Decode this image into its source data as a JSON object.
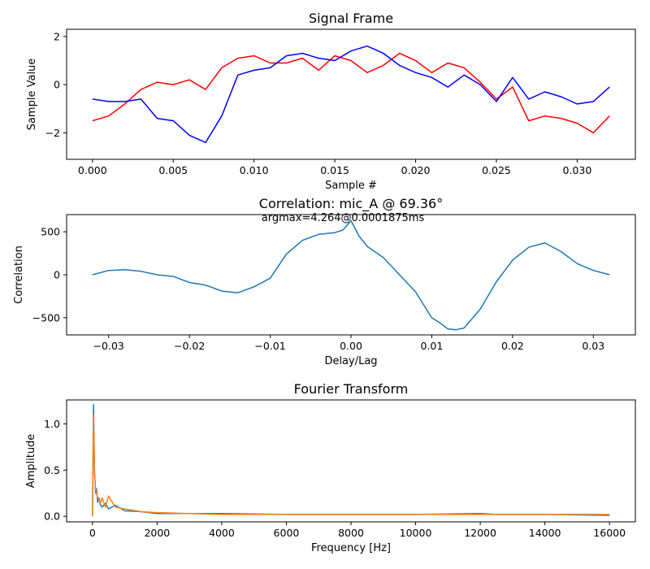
{
  "chart_data": [
    {
      "type": "line",
      "title": "Signal Frame",
      "xlabel": "Sample #",
      "ylabel": "Sample Value",
      "xlim": [
        -0.0016,
        0.0336
      ],
      "ylim": [
        -3.1,
        2.3
      ],
      "xticks": [
        "0.000",
        "0.005",
        "0.010",
        "0.015",
        "0.020",
        "0.025",
        "0.030"
      ],
      "xtick_values": [
        0,
        0.005,
        0.01,
        0.015,
        0.02,
        0.025,
        0.03
      ],
      "yticks": [
        "−2",
        "0",
        "2"
      ],
      "ytick_values": [
        -2,
        0,
        2
      ],
      "grid": false,
      "series": [
        {
          "color": "#ff0000",
          "x": [
            0,
            0.001,
            0.002,
            0.003,
            0.004,
            0.005,
            0.006,
            0.007,
            0.008,
            0.009,
            0.01,
            0.011,
            0.012,
            0.013,
            0.014,
            0.015,
            0.016,
            0.017,
            0.018,
            0.019,
            0.02,
            0.021,
            0.022,
            0.023,
            0.024,
            0.025,
            0.026,
            0.027,
            0.028,
            0.029,
            0.03,
            0.031,
            0.032
          ],
          "y": [
            -1.5,
            -1.3,
            -0.8,
            -0.2,
            0.1,
            0.0,
            0.2,
            -0.2,
            0.7,
            1.1,
            1.2,
            0.9,
            0.9,
            1.1,
            0.6,
            1.2,
            1.0,
            0.5,
            0.8,
            1.3,
            1.0,
            0.5,
            0.9,
            0.7,
            0.1,
            -0.6,
            -0.1,
            -1.5,
            -1.3,
            -1.4,
            -1.6,
            -2.0,
            -1.3
          ]
        },
        {
          "color": "#0000ff",
          "x": [
            0,
            0.001,
            0.002,
            0.003,
            0.004,
            0.005,
            0.006,
            0.007,
            0.008,
            0.009,
            0.01,
            0.011,
            0.012,
            0.013,
            0.014,
            0.015,
            0.016,
            0.017,
            0.018,
            0.019,
            0.02,
            0.021,
            0.022,
            0.023,
            0.024,
            0.025,
            0.026,
            0.027,
            0.028,
            0.029,
            0.03,
            0.031,
            0.032
          ],
          "y": [
            -0.6,
            -0.7,
            -0.7,
            -0.6,
            -1.4,
            -1.5,
            -2.1,
            -2.4,
            -1.3,
            0.4,
            0.6,
            0.7,
            1.2,
            1.3,
            1.1,
            1.0,
            1.4,
            1.6,
            1.3,
            0.8,
            0.5,
            0.3,
            -0.1,
            0.4,
            0.0,
            -0.7,
            0.3,
            -0.6,
            -0.3,
            -0.5,
            -0.8,
            -0.7,
            -0.1
          ]
        }
      ]
    },
    {
      "type": "line",
      "title": "Correlation: mic_A @ 69.36°",
      "annotation": "argmax=4.264@0.0001875ms",
      "xlabel": "Delay/Lag",
      "ylabel": "Correlation",
      "xlim": [
        -0.0352,
        0.0352
      ],
      "ylim": [
        -700,
        700
      ],
      "xticks": [
        "−0.03",
        "−0.02",
        "−0.01",
        "0.00",
        "0.01",
        "0.02",
        "0.03"
      ],
      "xtick_values": [
        -0.03,
        -0.02,
        -0.01,
        0,
        0.01,
        0.02,
        0.03
      ],
      "yticks": [
        "−500",
        "0",
        "500"
      ],
      "ytick_values": [
        -500,
        0,
        500
      ],
      "grid": false,
      "series": [
        {
          "color": "#1f77b4",
          "x": [
            -0.032,
            -0.03,
            -0.028,
            -0.026,
            -0.024,
            -0.022,
            -0.02,
            -0.018,
            -0.016,
            -0.014,
            -0.012,
            -0.01,
            -0.008,
            -0.006,
            -0.004,
            -0.002,
            -0.001,
            0.0,
            0.001,
            0.002,
            0.004,
            0.006,
            0.008,
            0.01,
            0.011,
            0.012,
            0.013,
            0.014,
            0.016,
            0.018,
            0.02,
            0.022,
            0.024,
            0.026,
            0.028,
            0.03,
            0.032
          ],
          "y": [
            0,
            50,
            60,
            40,
            0,
            -20,
            -90,
            -120,
            -190,
            -210,
            -140,
            -40,
            240,
            400,
            470,
            490,
            520,
            630,
            450,
            330,
            200,
            0,
            -200,
            -500,
            -560,
            -630,
            -640,
            -620,
            -400,
            -80,
            170,
            320,
            370,
            270,
            130,
            50,
            0
          ]
        }
      ]
    },
    {
      "type": "line",
      "title": "Fourier Transform",
      "xlabel": "Frequency [Hz]",
      "ylabel": "Amplitude",
      "xlim": [
        -800,
        16800
      ],
      "ylim": [
        -0.06,
        1.26
      ],
      "xticks": [
        "0",
        "2000",
        "4000",
        "6000",
        "8000",
        "10000",
        "12000",
        "14000",
        "16000"
      ],
      "xtick_values": [
        0,
        2000,
        4000,
        6000,
        8000,
        10000,
        12000,
        14000,
        16000
      ],
      "yticks": [
        "0.0",
        "0.5",
        "1.0"
      ],
      "ytick_values": [
        0,
        0.5,
        1.0
      ],
      "grid": false,
      "series": [
        {
          "color": "#1f77b4",
          "x": [
            0,
            31,
            62,
            94,
            125,
            160,
            200,
            250,
            300,
            400,
            500,
            700,
            1000,
            1500,
            2000,
            3000,
            4000,
            6000,
            8000,
            10000,
            12000,
            12500,
            13000,
            14000,
            16000
          ],
          "y": [
            0.0,
            1.21,
            0.5,
            0.25,
            0.3,
            0.15,
            0.2,
            0.12,
            0.1,
            0.14,
            0.08,
            0.12,
            0.06,
            0.05,
            0.03,
            0.03,
            0.03,
            0.02,
            0.02,
            0.02,
            0.03,
            0.02,
            0.02,
            0.02,
            0.01
          ]
        },
        {
          "color": "#ff7f0e",
          "x": [
            0,
            31,
            62,
            94,
            125,
            160,
            200,
            250,
            300,
            400,
            500,
            700,
            1000,
            1500,
            2000,
            3000,
            4000,
            6000,
            8000,
            10000,
            12000,
            12500,
            13000,
            14000,
            16000
          ],
          "y": [
            0.0,
            1.1,
            0.45,
            0.3,
            0.25,
            0.2,
            0.18,
            0.15,
            0.2,
            0.1,
            0.22,
            0.1,
            0.08,
            0.05,
            0.04,
            0.03,
            0.02,
            0.02,
            0.02,
            0.02,
            0.02,
            0.02,
            0.02,
            0.02,
            0.02
          ]
        }
      ]
    }
  ]
}
